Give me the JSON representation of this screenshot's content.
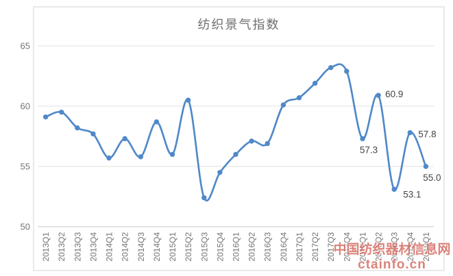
{
  "watermark": {
    "line1": "中国纺织器材信息网",
    "line2": "ctainfo.cn",
    "color": "#d4695f"
  },
  "chart_data": {
    "type": "line",
    "title": "纺织景气指数",
    "categories": [
      "2013Q1",
      "2013Q2",
      "2013Q3",
      "2013Q4",
      "2014Q1",
      "2014Q2",
      "2014Q3",
      "2014Q4",
      "2015Q1",
      "2015Q2",
      "2015Q3",
      "2015Q4",
      "2016Q1",
      "2016Q2",
      "2016Q3",
      "2016Q4",
      "2017Q1",
      "2017Q2",
      "2017Q3",
      "2017Q4",
      "2018Q1",
      "2018Q2",
      "2018Q3",
      "2018Q4",
      "2019Q1"
    ],
    "series": [
      {
        "name": "纺织景气指数",
        "color": "#5089c9",
        "values": [
          59.1,
          59.5,
          58.2,
          57.7,
          55.7,
          57.3,
          55.8,
          58.7,
          56.0,
          60.5,
          52.4,
          54.5,
          56.0,
          57.1,
          56.9,
          60.1,
          60.7,
          61.9,
          63.2,
          62.9,
          57.3,
          60.9,
          53.1,
          57.8,
          55.0
        ]
      }
    ],
    "xlabel": "",
    "ylabel": "",
    "ylim": [
      50,
      65
    ],
    "yticks": [
      65,
      60,
      55,
      50
    ],
    "grid": true,
    "smooth": true,
    "legend_position": "none",
    "annotations": [
      {
        "category": "2018Q1",
        "text": "57.3",
        "position": "below"
      },
      {
        "category": "2018Q2",
        "text": "60.9",
        "position": "above-right"
      },
      {
        "category": "2018Q3",
        "text": "53.1",
        "position": "below-right"
      },
      {
        "category": "2018Q4",
        "text": "57.8",
        "position": "right"
      },
      {
        "category": "2019Q1",
        "text": "55.0",
        "position": "below"
      }
    ],
    "colors": {
      "gridline": "#e2e2e2",
      "axis_line": "#c6c6c6",
      "tick_label": "#737373",
      "title": "#6e6e6e",
      "data_label": "#444444"
    }
  }
}
